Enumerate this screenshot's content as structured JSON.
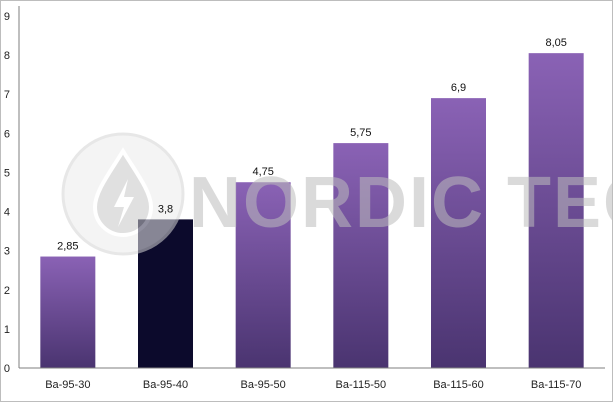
{
  "chart_data": {
    "type": "bar",
    "categories": [
      "Ba-95-30",
      "Ba-95-40",
      "Ba-95-50",
      "Ba-115-50",
      "Ba-115-60",
      "Ba-115-70"
    ],
    "values": [
      2.85,
      3.8,
      4.75,
      5.75,
      6.9,
      8.05
    ],
    "data_labels": [
      "2,85",
      "3,8",
      "4,75",
      "5,75",
      "6,9",
      "8,05"
    ],
    "y_ticks": [
      "0",
      "1",
      "2",
      "3",
      "4",
      "5",
      "6",
      "7",
      "8",
      "9"
    ],
    "ylim": [
      0,
      9
    ],
    "highlighted_category": "Ba-95-40",
    "colors": {
      "bar_top": "#8a62b5",
      "bar_bottom": "#4a3470",
      "highlight": "#0c0a2c",
      "axis": "#7f7f7f"
    },
    "grid": false,
    "legend": "none",
    "title": "",
    "xlabel": "",
    "ylabel": ""
  },
  "watermark": {
    "text": "NORDIC TEC",
    "icon": "water-drop-lightning-icon"
  }
}
